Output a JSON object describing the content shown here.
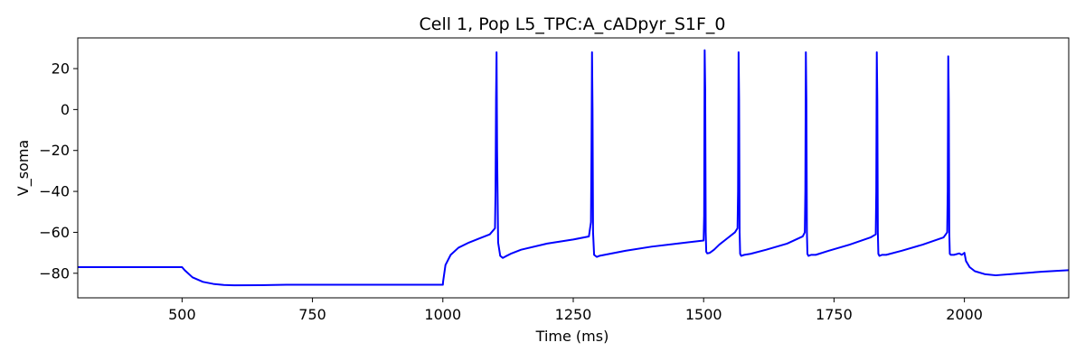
{
  "chart_data": {
    "type": "line",
    "title": "Cell 1, Pop L5_TPC:A_cADpyr_S1F_0",
    "xlabel": "Time (ms)",
    "ylabel": "V_soma",
    "xlim": [
      300,
      2200
    ],
    "ylim": [
      -92,
      35
    ],
    "x_ticks": [
      500,
      750,
      1000,
      1250,
      1500,
      1750,
      2000
    ],
    "x_tick_labels": [
      "500",
      "750",
      "1000",
      "1250",
      "1500",
      "1750",
      "2000"
    ],
    "y_ticks": [
      -80,
      -60,
      -40,
      -20,
      0,
      20
    ],
    "y_tick_labels": [
      "−80",
      "−60",
      "−40",
      "−20",
      "0",
      "20"
    ],
    "grid": false,
    "series": [
      {
        "color": "#0000ff",
        "x": [
          300,
          500,
          505,
          520,
          540,
          560,
          580,
          600,
          650,
          700,
          800,
          900,
          1000,
          1000.5,
          1005,
          1015,
          1030,
          1050,
          1070,
          1090,
          1100,
          1101,
          1102,
          1103,
          1104,
          1106,
          1110,
          1115,
          1120,
          1130,
          1150,
          1200,
          1250,
          1280,
          1284,
          1285,
          1286,
          1287,
          1288,
          1290,
          1295,
          1300,
          1320,
          1350,
          1400,
          1450,
          1500,
          1501,
          1502,
          1503,
          1504,
          1505,
          1507,
          1512,
          1520,
          1530,
          1545,
          1560,
          1565,
          1566,
          1567,
          1568,
          1569,
          1570,
          1572,
          1578,
          1590,
          1620,
          1660,
          1690,
          1694,
          1695,
          1696,
          1697,
          1698,
          1699,
          1701,
          1706,
          1715,
          1740,
          1780,
          1820,
          1830,
          1831,
          1832,
          1833,
          1834,
          1835,
          1837,
          1842,
          1850,
          1880,
          1920,
          1960,
          1967,
          1968,
          1969,
          1970,
          1971,
          1972,
          1974,
          1980,
          1990,
          1995,
          2000,
          2003,
          2010,
          2020,
          2040,
          2060,
          2100,
          2150,
          2200
        ],
        "y": [
          -77,
          -77,
          -78.5,
          -82,
          -84.2,
          -85.2,
          -85.7,
          -85.9,
          -85.8,
          -85.6,
          -85.6,
          -85.6,
          -85.6,
          -84,
          -76,
          -71,
          -67.5,
          -65,
          -63,
          -61,
          -58,
          -40,
          5,
          28,
          -20,
          -65,
          -71.5,
          -72.5,
          -71.8,
          -70.5,
          -68.5,
          -65.5,
          -63.5,
          -62,
          -55,
          -20,
          28,
          0,
          -60,
          -71,
          -72,
          -71.5,
          -70.5,
          -69,
          -67,
          -65.5,
          -64,
          -52,
          29,
          10,
          -60,
          -69.5,
          -70.3,
          -70,
          -68.5,
          -66,
          -63,
          -60,
          -58,
          -40,
          28,
          5,
          -60,
          -70.5,
          -71.5,
          -71,
          -70.5,
          -68.5,
          -65.5,
          -62,
          -60,
          -40,
          28,
          5,
          -60,
          -70.5,
          -71.5,
          -71,
          -71,
          -69,
          -66,
          -62.5,
          -61,
          -40,
          28,
          5,
          -60,
          -70.5,
          -71.5,
          -71,
          -71,
          -69,
          -66,
          -62.5,
          -60,
          -40,
          26,
          5,
          -60,
          -70.5,
          -71,
          -71,
          -70.3,
          -71,
          -70,
          -74,
          -77,
          -79,
          -80.5,
          -81,
          -80.2,
          -79.2,
          -78.5
        ]
      }
    ]
  }
}
